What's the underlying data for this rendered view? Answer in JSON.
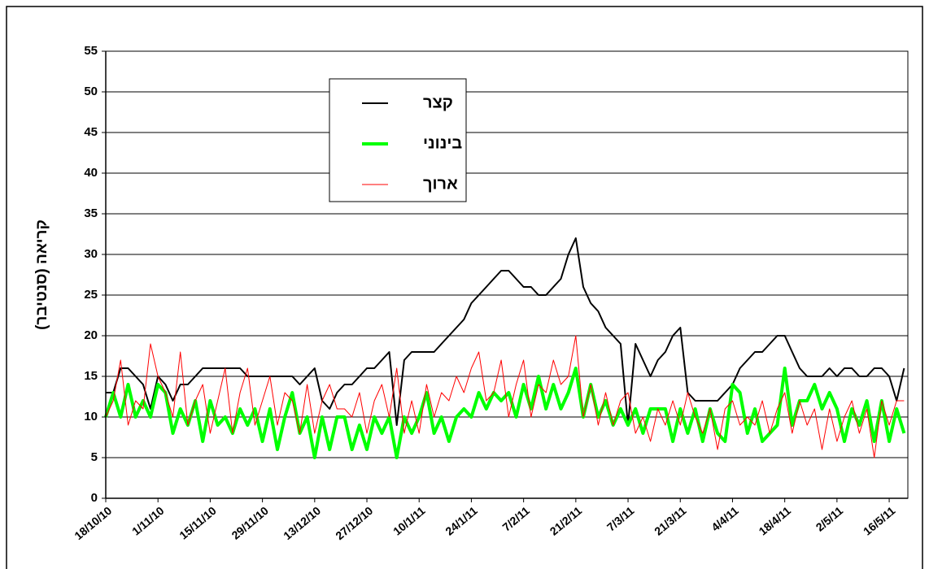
{
  "chart_data": {
    "type": "line",
    "y_label": "קריאה (סנטיבר)",
    "x": [
      "2010-10-18",
      "2010-10-20",
      "2010-10-22",
      "2010-10-24",
      "2010-10-26",
      "2010-10-28",
      "2010-10-30",
      "2010-11-01",
      "2010-11-03",
      "2010-11-05",
      "2010-11-07",
      "2010-11-09",
      "2010-11-11",
      "2010-11-13",
      "2010-11-15",
      "2010-11-17",
      "2010-11-19",
      "2010-11-21",
      "2010-11-23",
      "2010-11-25",
      "2010-11-27",
      "2010-11-29",
      "2010-12-01",
      "2010-12-03",
      "2010-12-05",
      "2010-12-07",
      "2010-12-09",
      "2010-12-11",
      "2010-12-13",
      "2010-12-15",
      "2010-12-17",
      "2010-12-19",
      "2010-12-21",
      "2010-12-23",
      "2010-12-25",
      "2010-12-27",
      "2010-12-29",
      "2010-12-31",
      "2011-01-02",
      "2011-01-04",
      "2011-01-06",
      "2011-01-08",
      "2011-01-10",
      "2011-01-12",
      "2011-01-14",
      "2011-01-16",
      "2011-01-18",
      "2011-01-20",
      "2011-01-22",
      "2011-01-24",
      "2011-01-26",
      "2011-01-28",
      "2011-01-30",
      "2011-02-01",
      "2011-02-03",
      "2011-02-05",
      "2011-02-07",
      "2011-02-09",
      "2011-02-11",
      "2011-02-13",
      "2011-02-15",
      "2011-02-17",
      "2011-02-19",
      "2011-02-21",
      "2011-02-23",
      "2011-02-25",
      "2011-02-27",
      "2011-03-01",
      "2011-03-03",
      "2011-03-05",
      "2011-03-07",
      "2011-03-09",
      "2011-03-11",
      "2011-03-13",
      "2011-03-15",
      "2011-03-17",
      "2011-03-19",
      "2011-03-21",
      "2011-03-23",
      "2011-03-25",
      "2011-03-27",
      "2011-03-29",
      "2011-03-31",
      "2011-04-02",
      "2011-04-04",
      "2011-04-06",
      "2011-04-08",
      "2011-04-10",
      "2011-04-12",
      "2011-04-14",
      "2011-04-16",
      "2011-04-18",
      "2011-04-20",
      "2011-04-22",
      "2011-04-24",
      "2011-04-26",
      "2011-04-28",
      "2011-04-30",
      "2011-05-02",
      "2011-05-04",
      "2011-05-06",
      "2011-05-08",
      "2011-05-10",
      "2011-05-12",
      "2011-05-14",
      "2011-05-16",
      "2011-05-18",
      "2011-05-20"
    ],
    "series": [
      {
        "name": "קצר",
        "color": "#000000",
        "width": 2,
        "values": [
          13,
          13,
          16,
          16,
          15,
          14,
          11,
          15,
          14,
          12,
          14,
          14,
          15,
          16,
          16,
          16,
          16,
          16,
          16,
          15,
          15,
          15,
          15,
          15,
          15,
          15,
          14,
          15,
          16,
          12,
          11,
          13,
          14,
          14,
          15,
          16,
          16,
          17,
          18,
          9,
          17,
          18,
          18,
          18,
          18,
          19,
          20,
          21,
          22,
          24,
          25,
          26,
          27,
          28,
          28,
          27,
          26,
          26,
          25,
          25,
          26,
          27,
          30,
          32,
          26,
          24,
          23,
          21,
          20,
          19,
          9,
          19,
          17,
          15,
          17,
          18,
          20,
          21,
          13,
          12,
          12,
          12,
          12,
          13,
          14,
          16,
          17,
          18,
          18,
          19,
          20,
          20,
          18,
          16,
          15,
          15,
          15,
          16,
          15,
          16,
          16,
          15,
          15,
          16,
          16,
          15,
          12,
          16
        ]
      },
      {
        "name": "בינוני",
        "color": "#00ff00",
        "width": 4,
        "values": [
          10,
          13,
          10,
          14,
          10,
          12,
          10,
          14,
          13,
          8,
          11,
          9,
          12,
          7,
          12,
          9,
          10,
          8,
          11,
          9,
          11,
          7,
          11,
          6,
          10,
          13,
          8,
          10,
          5,
          10,
          6,
          10,
          10,
          6,
          9,
          6,
          10,
          8,
          10,
          5,
          10,
          8,
          10,
          13,
          8,
          10,
          7,
          10,
          11,
          10,
          13,
          11,
          13,
          12,
          13,
          10,
          14,
          11,
          15,
          11,
          14,
          11,
          13,
          16,
          10,
          14,
          10,
          12,
          9,
          11,
          9,
          11,
          8,
          11,
          11,
          11,
          7,
          11,
          8,
          11,
          7,
          11,
          8,
          7,
          14,
          13,
          8,
          11,
          7,
          8,
          9,
          16,
          9,
          12,
          12,
          14,
          11,
          13,
          11,
          7,
          11,
          9,
          12,
          7,
          12,
          7,
          11,
          8
        ]
      },
      {
        "name": "ארוך",
        "color": "#ff0000",
        "width": 1,
        "values": [
          10,
          12,
          17,
          9,
          12,
          11,
          19,
          15,
          13,
          10,
          18,
          9,
          12,
          14,
          8,
          12,
          16,
          8,
          13,
          16,
          9,
          12,
          15,
          9,
          13,
          12,
          8,
          14,
          8,
          12,
          14,
          11,
          11,
          10,
          13,
          8,
          12,
          14,
          10,
          16,
          8,
          12,
          8,
          14,
          10,
          13,
          12,
          15,
          13,
          16,
          18,
          12,
          13,
          17,
          10,
          14,
          17,
          10,
          14,
          13,
          17,
          14,
          15,
          20,
          10,
          14,
          9,
          13,
          9,
          12,
          13,
          8,
          10,
          7,
          11,
          9,
          12,
          9,
          13,
          10,
          8,
          11,
          6,
          11,
          12,
          9,
          10,
          9,
          12,
          8,
          11,
          13,
          8,
          12,
          9,
          11,
          6,
          11,
          7,
          10,
          12,
          8,
          11,
          5,
          12,
          9,
          12,
          12
        ]
      }
    ],
    "xlim": [
      "2010-10-18",
      "2011-05-21"
    ],
    "xticks": [
      {
        "value": "2010-10-18",
        "label": "18/10/10"
      },
      {
        "value": "2010-11-01",
        "label": "1/11/10"
      },
      {
        "value": "2010-11-15",
        "label": "15/11/10"
      },
      {
        "value": "2010-11-29",
        "label": "29/11/10"
      },
      {
        "value": "2010-12-13",
        "label": "13/12/10"
      },
      {
        "value": "2010-12-27",
        "label": "27/12/10"
      },
      {
        "value": "2011-01-10",
        "label": "10/1/11"
      },
      {
        "value": "2011-01-24",
        "label": "24/1/11"
      },
      {
        "value": "2011-02-07",
        "label": "7/2/11"
      },
      {
        "value": "2011-02-21",
        "label": "21/2/11"
      },
      {
        "value": "2011-03-07",
        "label": "7/3/11"
      },
      {
        "value": "2011-03-21",
        "label": "21/3/11"
      },
      {
        "value": "2011-04-04",
        "label": "4/4/11"
      },
      {
        "value": "2011-04-18",
        "label": "18/4/11"
      },
      {
        "value": "2011-05-02",
        "label": "2/5/11"
      },
      {
        "value": "2011-05-16",
        "label": "16/5/11"
      }
    ],
    "ylim": [
      0,
      55
    ],
    "yticks": [
      0,
      5,
      10,
      15,
      20,
      25,
      30,
      35,
      40,
      45,
      50,
      55
    ],
    "grid": true,
    "legend": "upper left"
  }
}
